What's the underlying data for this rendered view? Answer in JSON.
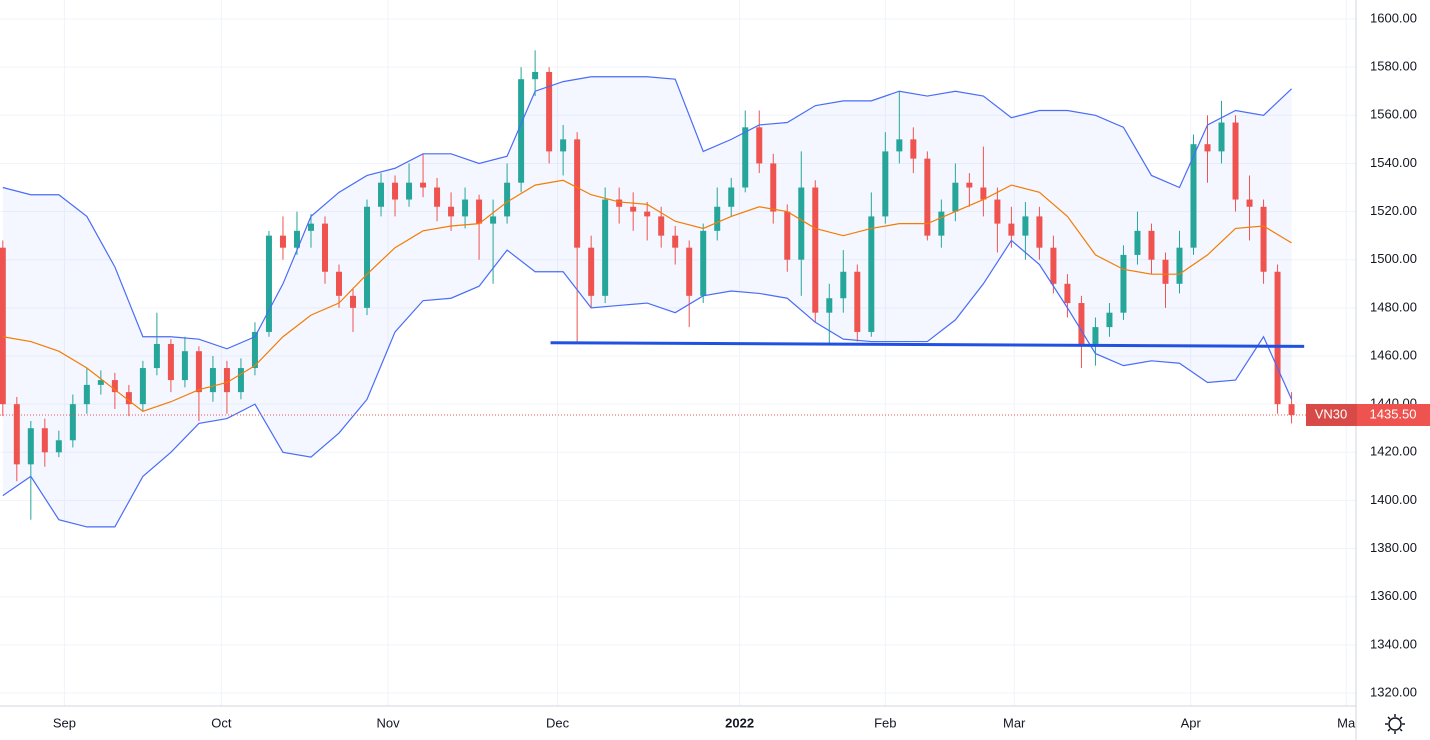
{
  "chart_data": {
    "type": "candlestick",
    "xlim": [
      -0.2,
      96.6
    ],
    "ylim": [
      1314.6,
      1607.9
    ],
    "xticks": [
      {
        "value": 4.4,
        "label": "Sep"
      },
      {
        "value": 15.6,
        "label": "Oct"
      },
      {
        "value": 27.5,
        "label": "Nov"
      },
      {
        "value": 39.6,
        "label": "Dec"
      },
      {
        "value": 52.6,
        "label": "2022",
        "bold": true
      },
      {
        "value": 63,
        "label": "Feb"
      },
      {
        "value": 72.2,
        "label": "Mar"
      },
      {
        "value": 84.8,
        "label": "Apr"
      },
      {
        "value": 95.9,
        "label": "Ma"
      }
    ],
    "yticks": [
      {
        "value": 1320,
        "label": "1320.00"
      },
      {
        "value": 1340,
        "label": "1340.00"
      },
      {
        "value": 1360,
        "label": "1360.00"
      },
      {
        "value": 1380,
        "label": "1380.00"
      },
      {
        "value": 1400,
        "label": "1400.00"
      },
      {
        "value": 1420,
        "label": "1420.00"
      },
      {
        "value": 1440,
        "label": "1440.00"
      },
      {
        "value": 1460,
        "label": "1460.00"
      },
      {
        "value": 1480,
        "label": "1480.00"
      },
      {
        "value": 1500,
        "label": "1500.00"
      },
      {
        "value": 1520,
        "label": "1520.00"
      },
      {
        "value": 1540,
        "label": "1540.00"
      },
      {
        "value": 1560,
        "label": "1560.00"
      },
      {
        "value": 1580,
        "label": "1580.00"
      },
      {
        "value": 1600,
        "label": "1600.00"
      }
    ],
    "grid": true,
    "up_color": "#26a69a",
    "down_color": "#ef5350",
    "open": [
      1505,
      1440,
      1415,
      1430,
      1420,
      1425,
      1440,
      1448,
      1450,
      1445,
      1440,
      1455,
      1465,
      1450,
      1462,
      1445,
      1455,
      1445,
      1455,
      1470,
      1510,
      1505,
      1512,
      1515,
      1495,
      1485,
      1480,
      1522,
      1532,
      1525,
      1532,
      1530,
      1522,
      1518,
      1525,
      1515,
      1518,
      1532,
      1575,
      1578,
      1545,
      1550,
      1505,
      1485,
      1525,
      1522,
      1520,
      1518,
      1510,
      1505,
      1485,
      1512,
      1522,
      1530,
      1555,
      1540,
      1520,
      1500,
      1530,
      1478,
      1484,
      1495,
      1470,
      1518,
      1545,
      1550,
      1542,
      1510,
      1520,
      1532,
      1530,
      1525,
      1515,
      1510,
      1518,
      1505,
      1490,
      1482,
      1465,
      1472,
      1478,
      1502,
      1512,
      1500,
      1490,
      1505,
      1548,
      1545,
      1557,
      1525,
      1522,
      1495,
      1440
    ],
    "high": [
      1508,
      1443,
      1433,
      1434,
      1429,
      1444,
      1455,
      1454,
      1453,
      1448,
      1458,
      1478,
      1467,
      1468,
      1464,
      1460,
      1458,
      1459,
      1474,
      1512,
      1518,
      1520,
      1519,
      1518,
      1498,
      1488,
      1525,
      1536,
      1535,
      1540,
      1544,
      1534,
      1528,
      1530,
      1527,
      1525,
      1540,
      1580,
      1587,
      1580,
      1556,
      1553,
      1510,
      1530,
      1530,
      1528,
      1524,
      1522,
      1514,
      1508,
      1515,
      1530,
      1534,
      1562,
      1562,
      1544,
      1523,
      1545,
      1533,
      1490,
      1504,
      1498,
      1528,
      1553,
      1570,
      1555,
      1545,
      1525,
      1540,
      1536,
      1547,
      1530,
      1522,
      1524,
      1522,
      1510,
      1494,
      1485,
      1476,
      1482,
      1506,
      1520,
      1515,
      1503,
      1512,
      1552,
      1560,
      1566,
      1560,
      1535,
      1525,
      1498,
      1445
    ],
    "low": [
      1435,
      1408,
      1392,
      1414,
      1418,
      1422,
      1436,
      1444,
      1438,
      1435,
      1437,
      1452,
      1445,
      1447,
      1433,
      1441,
      1436,
      1442,
      1452,
      1468,
      1500,
      1502,
      1505,
      1490,
      1480,
      1470,
      1477,
      1518,
      1518,
      1522,
      1526,
      1516,
      1512,
      1513,
      1500,
      1490,
      1515,
      1528,
      1568,
      1540,
      1535,
      1465,
      1480,
      1482,
      1515,
      1512,
      1508,
      1505,
      1498,
      1472,
      1482,
      1508,
      1518,
      1528,
      1536,
      1515,
      1495,
      1485,
      1474,
      1465,
      1478,
      1466,
      1468,
      1515,
      1540,
      1536,
      1508,
      1505,
      1516,
      1522,
      1518,
      1503,
      1505,
      1500,
      1500,
      1486,
      1476,
      1455,
      1456,
      1468,
      1475,
      1498,
      1494,
      1480,
      1486,
      1502,
      1532,
      1540,
      1520,
      1508,
      1490,
      1436,
      1432
    ],
    "close": [
      1440,
      1415,
      1430,
      1420,
      1425,
      1440,
      1448,
      1450,
      1445,
      1440,
      1455,
      1465,
      1450,
      1462,
      1445,
      1455,
      1445,
      1455,
      1470,
      1510,
      1505,
      1512,
      1515,
      1495,
      1485,
      1480,
      1522,
      1532,
      1525,
      1532,
      1530,
      1522,
      1518,
      1525,
      1515,
      1518,
      1532,
      1575,
      1578,
      1545,
      1550,
      1505,
      1485,
      1525,
      1522,
      1520,
      1518,
      1510,
      1505,
      1485,
      1512,
      1522,
      1530,
      1555,
      1540,
      1520,
      1500,
      1530,
      1478,
      1484,
      1495,
      1470,
      1518,
      1545,
      1550,
      1542,
      1510,
      1520,
      1532,
      1530,
      1525,
      1515,
      1510,
      1518,
      1505,
      1490,
      1482,
      1465,
      1472,
      1478,
      1502,
      1512,
      1500,
      1490,
      1505,
      1548,
      1545,
      1557,
      1525,
      1522,
      1495,
      1440,
      1435.5
    ],
    "bands": {
      "x": [
        0,
        2,
        4,
        6,
        8,
        10,
        12,
        14,
        16,
        18,
        20,
        22,
        24,
        26,
        28,
        30,
        32,
        34,
        36,
        38,
        40,
        42,
        44,
        46,
        48,
        50,
        52,
        54,
        56,
        58,
        60,
        62,
        64,
        66,
        68,
        70,
        72,
        74,
        76,
        78,
        80,
        82,
        84,
        86,
        88,
        90,
        92
      ],
      "upper": [
        1530,
        1527,
        1527,
        1518,
        1497,
        1468,
        1468,
        1467,
        1463,
        1468,
        1490,
        1518,
        1528,
        1535,
        1538,
        1544,
        1544,
        1540,
        1543,
        1570,
        1574,
        1576,
        1576,
        1576,
        1575,
        1545,
        1550,
        1556,
        1557,
        1564,
        1566,
        1566,
        1570,
        1568,
        1570,
        1568,
        1559,
        1562,
        1562,
        1560,
        1555,
        1535,
        1530,
        1556,
        1562,
        1560,
        1571
      ],
      "middle": [
        1468,
        1466,
        1462,
        1455,
        1446,
        1437,
        1441,
        1446,
        1449,
        1456,
        1468,
        1477,
        1482,
        1494,
        1505,
        1512,
        1514,
        1515,
        1524,
        1531,
        1533,
        1527,
        1524,
        1523,
        1516,
        1513,
        1518,
        1522,
        1520,
        1513,
        1510,
        1513,
        1515,
        1515,
        1520,
        1525,
        1531,
        1528,
        1518,
        1502,
        1496,
        1494,
        1494,
        1502,
        1513,
        1514,
        1507
      ],
      "lower": [
        1402,
        1410,
        1392,
        1389,
        1389,
        1410,
        1420,
        1432,
        1434,
        1440,
        1420,
        1418,
        1428,
        1442,
        1470,
        1483,
        1484,
        1489,
        1504,
        1495,
        1495,
        1480,
        1481,
        1482,
        1478,
        1485,
        1487,
        1486,
        1484,
        1474,
        1467,
        1466,
        1466,
        1466,
        1475,
        1490,
        1508,
        1498,
        1480,
        1461,
        1456,
        1458,
        1457,
        1449,
        1450,
        1468,
        1442
      ],
      "line_color": "#4a6cf7",
      "middle_color": "#f57c00",
      "fill": "#2962ff"
    },
    "trend_line": {
      "x": [
        39.1,
        92.9
      ],
      "y": [
        1465.5,
        1464
      ],
      "color": "#2151e0"
    },
    "last_price": {
      "name": "VN30",
      "value": 1435.5,
      "label": "1435.50",
      "color": "#ef5350"
    }
  }
}
